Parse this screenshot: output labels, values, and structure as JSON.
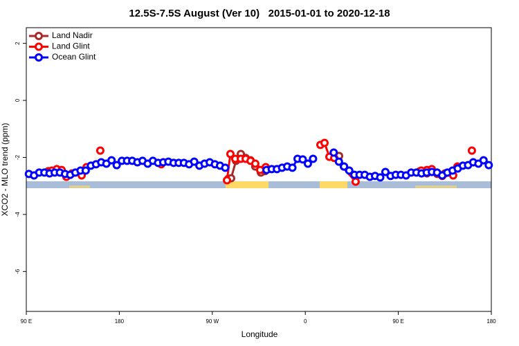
{
  "chart_data": {
    "type": "line",
    "title": "12.5S-7.5S August (Ver 10)   2015-01-01 to 2020-12-18",
    "x_label": "Longitude",
    "y_label": "XCO2 - MLO trend (ppm)",
    "xlim": [
      90,
      540
    ],
    "xticks": [
      {
        "value": 90,
        "label": "90 E"
      },
      {
        "value": 180,
        "label": "180"
      },
      {
        "value": 270,
        "label": "90 W"
      },
      {
        "value": 360,
        "label": "0"
      },
      {
        "value": 450,
        "label": "90 E"
      },
      {
        "value": 540,
        "label": "180"
      }
    ],
    "ylim": [
      -7.4,
      2.55
    ],
    "yticks": [
      2,
      0,
      -2,
      -4,
      -6
    ],
    "legend": "top-left",
    "series": [
      {
        "name": "Land Nadir",
        "color": "#a52a2a",
        "x": [
          111.4,
          118.1,
          124.8,
          null,
          285.5,
          288.2,
          292.9,
          297.6,
          302.3,
          307.0,
          311.6,
          317.0,
          321.0,
          null,
          392.7,
          397.3,
          null,
          471.0,
          477.7,
          487.7,
          495.1
        ],
        "values": [
          -2.48,
          -2.46,
          -2.51,
          null,
          -2.75,
          -2.73,
          -2.12,
          -1.88,
          -2.02,
          -2.1,
          -2.32,
          -2.53,
          -2.48,
          null,
          -1.95,
          -2.32,
          null,
          -2.48,
          -2.56,
          -2.58,
          -2.56
        ]
      },
      {
        "name": "Land Glint",
        "color": "#ff0000",
        "x": [
          110.1,
          114.8,
          119.5,
          124.2,
          128.8,
          134.2,
          143.6,
          148.3,
          null,
          161.6,
          null,
          220.6,
          null,
          284.2,
          287.5,
          292.2,
          297.6,
          302.3,
          307.0,
          311.6,
          316.3,
          321.7,
          null,
          374.6,
          378.6,
          383.3,
          388.0,
          408.7,
          null,
          472.3,
          477.7,
          482.4,
          492.5,
          503.1,
          507.2,
          null,
          521.2
        ],
        "values": [
          -2.51,
          -2.46,
          -2.41,
          -2.44,
          -2.68,
          -2.56,
          -2.63,
          -2.34,
          null,
          -1.76,
          null,
          -2.24,
          null,
          -2.8,
          -1.88,
          -2.05,
          -2.05,
          -2.05,
          -2.12,
          -2.22,
          -2.44,
          -2.34,
          null,
          -1.56,
          -1.49,
          -1.98,
          -2.02,
          -2.85,
          null,
          -2.46,
          -2.44,
          -2.41,
          -2.65,
          -2.63,
          -2.32,
          null,
          -1.76
        ]
      },
      {
        "name": "Ocean Glint",
        "color": "#0000ff",
        "x": [
          92.5,
          97.5,
          102.5,
          107.5,
          112.5,
          117.5,
          122.5,
          127.5,
          132.5,
          137.5,
          142.5,
          147.5,
          152.5,
          157.5,
          162.5,
          167.5,
          172.5,
          177.5,
          182.5,
          187.5,
          192.5,
          197.5,
          202.5,
          207.5,
          212.5,
          217.5,
          222.5,
          227.5,
          232.5,
          237.5,
          242.5,
          247.5,
          252.5,
          257.5,
          262.5,
          267.5,
          272.5,
          277.5,
          282.5,
          287.5,
          292.5,
          297.5,
          302.5,
          307.5,
          312.5,
          317.5,
          322.5,
          327.5,
          332.5,
          337.5,
          342.5,
          347.5,
          352.5,
          357.5,
          362.5,
          367.5,
          372.5,
          377.5,
          382.5,
          387.5,
          392.5,
          397.5,
          402.5,
          407.5,
          412.5,
          417.5,
          422.5,
          427.5,
          432.5,
          437.5,
          442.5,
          447.5,
          452.5,
          457.5,
          462.5,
          467.5,
          472.5,
          477.5,
          482.5,
          487.5,
          492.5,
          497.5,
          502.5,
          507.5,
          512.5,
          517.5,
          522.5,
          527.5,
          532.5,
          537.5
        ],
        "values": [
          -2.58,
          -2.63,
          -2.53,
          -2.53,
          -2.56,
          -2.53,
          -2.53,
          -2.58,
          -2.61,
          -2.53,
          -2.46,
          -2.46,
          -2.29,
          -2.24,
          -2.17,
          -2.22,
          -2.1,
          -2.27,
          -2.12,
          -2.12,
          -2.12,
          -2.17,
          -2.12,
          -2.22,
          -2.12,
          -2.19,
          -2.17,
          -2.15,
          -2.19,
          -2.19,
          -2.19,
          -2.24,
          -2.15,
          -2.29,
          -2.22,
          -2.17,
          -2.24,
          -2.29,
          -2.36,
          null,
          null,
          null,
          null,
          null,
          null,
          null,
          -2.44,
          -2.41,
          -2.41,
          -2.36,
          -2.32,
          -2.36,
          -2.05,
          -2.07,
          -2.22,
          -2.05,
          null,
          null,
          null,
          -1.83,
          -2.15,
          -2.32,
          -2.46,
          -2.61,
          -2.61,
          -2.61,
          -2.68,
          -2.65,
          -2.7,
          -2.51,
          -2.65,
          -2.61,
          -2.61,
          -2.63,
          -2.53,
          -2.53,
          -2.56,
          -2.53,
          -2.51,
          -2.53,
          -2.63,
          -2.53,
          -2.46,
          -2.39,
          -2.29,
          -2.27,
          -2.17,
          -2.22,
          -2.1,
          -2.27
        ]
      }
    ]
  }
}
